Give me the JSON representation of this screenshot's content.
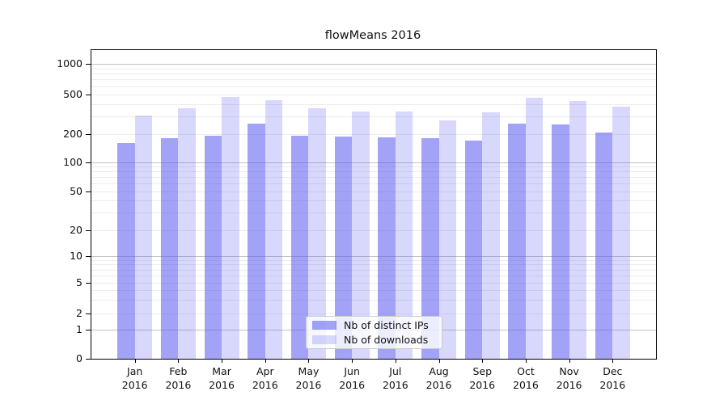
{
  "chart_data": {
    "type": "bar",
    "title": "flowMeans 2016",
    "categories": [
      "Jan 2016",
      "Feb 2016",
      "Mar 2016",
      "Apr 2016",
      "May 2016",
      "Jun 2016",
      "Jul 2016",
      "Aug 2016",
      "Sep 2016",
      "Oct 2016",
      "Nov 2016",
      "Dec 2016"
    ],
    "x_tick_months": [
      "Jan",
      "Feb",
      "Mar",
      "Apr",
      "May",
      "Jun",
      "Jul",
      "Aug",
      "Sep",
      "Oct",
      "Nov",
      "Dec"
    ],
    "x_tick_year": "2016",
    "series": [
      {
        "name": "Nb of distinct IPs",
        "color": "#a3a6f3",
        "values": [
          160,
          180,
          192,
          256,
          192,
          190,
          184,
          180,
          171,
          254,
          250,
          206
        ]
      },
      {
        "name": "Nb of downloads",
        "color": "#d8d9f8",
        "values": [
          305,
          362,
          465,
          432,
          360,
          333,
          333,
          276,
          327,
          462,
          425,
          375
        ]
      }
    ],
    "xlabel": "",
    "ylabel": "",
    "y_scale": "symlog",
    "y_ticks": [
      0,
      1,
      2,
      5,
      10,
      20,
      50,
      100,
      200,
      500,
      1000
    ],
    "y_tick_labels": [
      "0",
      "1",
      "2",
      "5",
      "10",
      "20",
      "50",
      "100",
      "200",
      "500",
      "1000"
    ],
    "ylim": [
      0,
      1400
    ],
    "grid": "on",
    "legend_position": "lower center"
  },
  "colors": {
    "bar_distinct_ips": "#a3a6f3",
    "bar_downloads": "#d8d9f8",
    "grid_major": "#c3c3c3",
    "grid_minor": "#ececec",
    "axis": "#000000"
  }
}
